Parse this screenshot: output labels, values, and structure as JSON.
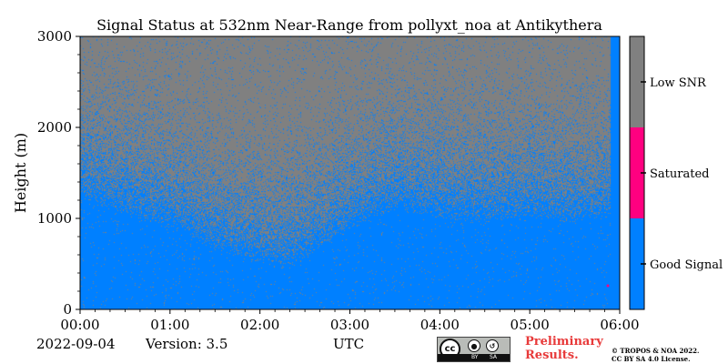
{
  "chart_data": {
    "type": "heatmap",
    "title": "Signal Status at 532nm Near-Range from pollyxt_noa at Antikythera",
    "xlabel": "UTC",
    "ylabel": "Height (m)",
    "x_ticks": [
      "00:00",
      "01:00",
      "02:00",
      "03:00",
      "04:00",
      "05:00",
      "06:00"
    ],
    "x_range_hours": [
      0,
      6
    ],
    "y_ticks": [
      0,
      1000,
      2000,
      3000
    ],
    "ylim": [
      0,
      3000
    ],
    "categories": [
      {
        "label": "Good Signal",
        "color": "#0080ff",
        "value": 0
      },
      {
        "label": "Saturated",
        "color": "#ff0080",
        "value": 1
      },
      {
        "label": "Low SNR",
        "color": "#808080",
        "value": 2
      }
    ],
    "good_signal_top_profile": {
      "time_hours": [
        0.0,
        0.5,
        1.0,
        1.5,
        2.0,
        2.25,
        2.5,
        3.0,
        3.5,
        4.0,
        4.5,
        5.0,
        5.5,
        5.85
      ],
      "height_m": [
        1200,
        1050,
        900,
        650,
        500,
        450,
        550,
        850,
        1100,
        1000,
        950,
        1000,
        950,
        1000
      ]
    },
    "grid": false,
    "colorbar_position": "right"
  },
  "footer": {
    "date": "2022-09-04",
    "version": "Version: 3.5",
    "license_badge": {
      "cc": "cc",
      "by": "BY",
      "sa": "SA"
    },
    "preliminary_line1": "Preliminary",
    "preliminary_line2": "Results.",
    "copyright_line1": "© TROPOS & NOA 2022.",
    "copyright_line2": "CC BY SA 4.0 License."
  },
  "colors": {
    "good": "#0080ff",
    "saturated": "#ff0080",
    "low_snr": "#808080",
    "preliminary": "#e83a3a"
  }
}
